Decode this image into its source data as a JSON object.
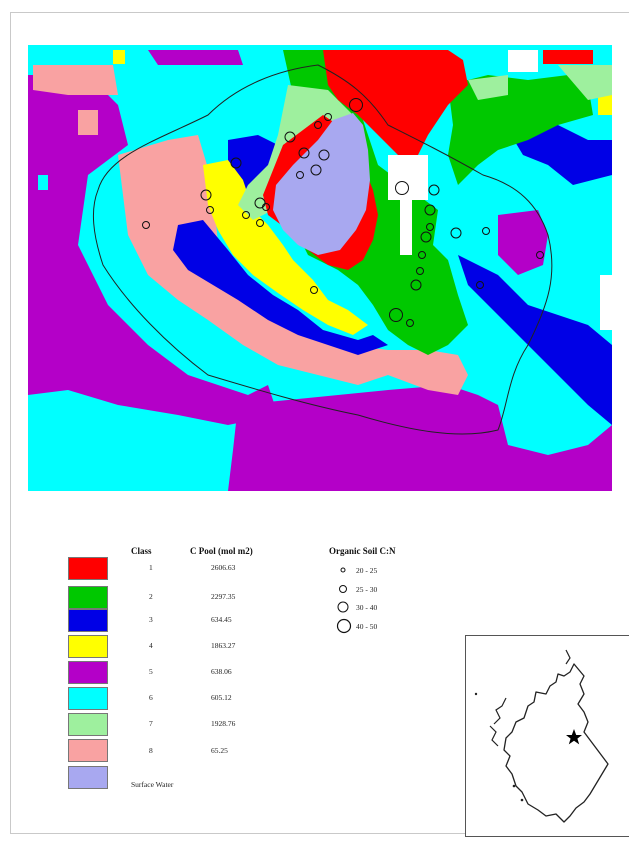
{
  "legend": {
    "class_header": "Class",
    "pool_header": "C Pool (mol m2)",
    "cn_header": "Organic Soil C:N",
    "classes": [
      {
        "label": "1",
        "pool": "2606.63",
        "color": "#ff0000"
      },
      {
        "label": "2",
        "pool": "2297.35",
        "color": "#00c800"
      },
      {
        "label": "3",
        "pool": "634.45",
        "color": "#0000e6"
      },
      {
        "label": "4",
        "pool": "1863.27",
        "color": "#ffff00"
      },
      {
        "label": "5",
        "pool": "638.06",
        "color": "#b400c8"
      },
      {
        "label": "6",
        "pool": "605.12",
        "color": "#00ffff"
      },
      {
        "label": "7",
        "pool": "1928.76",
        "color": "#9ef09e"
      },
      {
        "label": "8",
        "pool": "65.25",
        "color": "#f9a2a2"
      }
    ],
    "surface_water": {
      "label": "Surface Water",
      "color": "#a8a8f0"
    },
    "cn_ranges": [
      "20 - 25",
      "25 - 30",
      "30 - 40",
      "40 - 50"
    ]
  },
  "inset": {
    "icon": "scotland-locator-map-star-icon"
  }
}
